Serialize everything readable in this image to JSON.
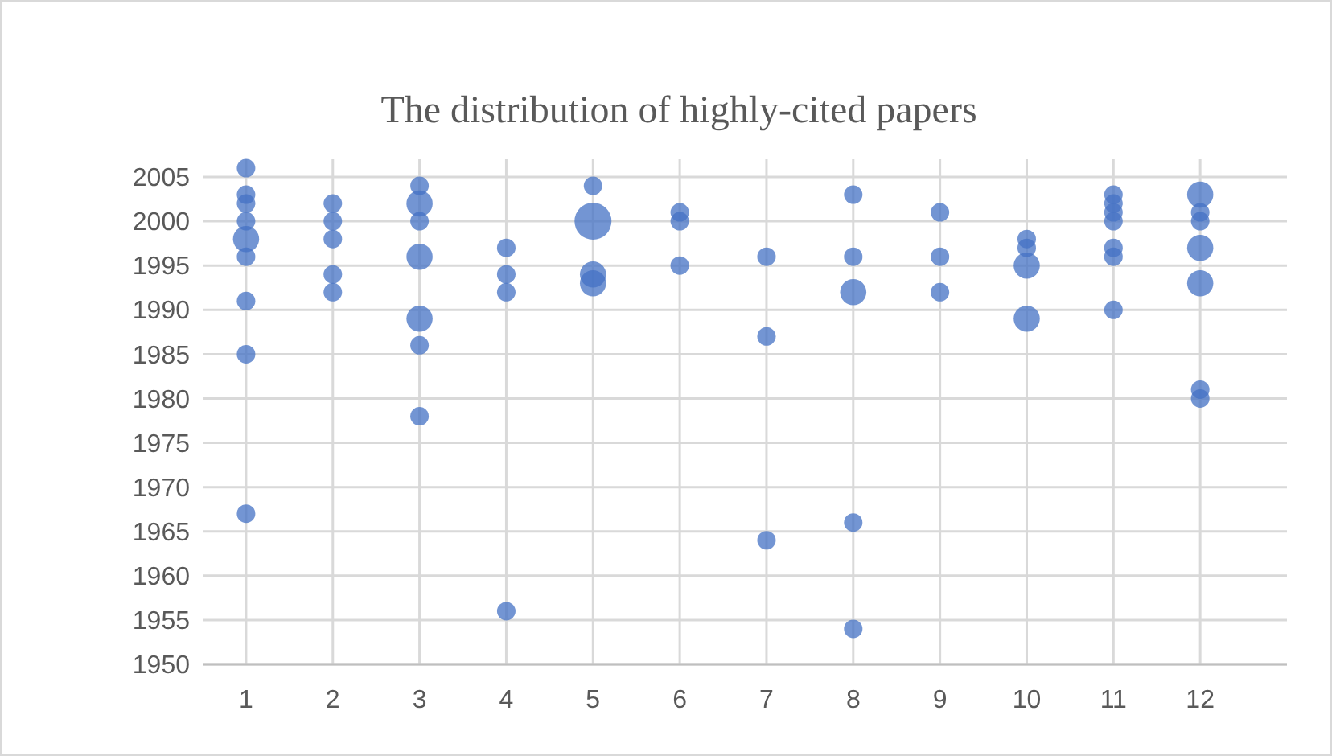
{
  "chart_data": {
    "type": "bubble",
    "title": "The distribution of highly-cited papers",
    "x": [
      1,
      1,
      1,
      1,
      1,
      1,
      1,
      1,
      1,
      2,
      2,
      2,
      2,
      2,
      3,
      3,
      3,
      3,
      3,
      3,
      3,
      4,
      4,
      4,
      4,
      5,
      5,
      5,
      5,
      6,
      6,
      6,
      7,
      7,
      7,
      8,
      8,
      8,
      8,
      8,
      9,
      9,
      9,
      10,
      10,
      10,
      10,
      11,
      11,
      11,
      11,
      11,
      11,
      11,
      12,
      12,
      12,
      12,
      12,
      12,
      12
    ],
    "values": [
      2006,
      2003,
      2002,
      2000,
      1998,
      1996,
      1991,
      1985,
      1967,
      2002,
      2000,
      1998,
      1994,
      1992,
      2004,
      2002,
      2000,
      1996,
      1989,
      1986,
      1978,
      1997,
      1994,
      1992,
      1956,
      2004,
      2000,
      1994,
      1993,
      2001,
      2000,
      1995,
      1996,
      1987,
      1964,
      2003,
      1996,
      1992,
      1966,
      1954,
      2001,
      1996,
      1992,
      1998,
      1997,
      1995,
      1989,
      2003,
      2002,
      2001,
      2000,
      1997,
      1996,
      1990,
      2003,
      2001,
      2000,
      1997,
      1993,
      1981,
      1980
    ],
    "sizes": [
      0.25,
      0.25,
      0.25,
      0.25,
      0.5,
      0.25,
      0.25,
      0.25,
      0.25,
      0.25,
      0.25,
      0.25,
      0.25,
      0.25,
      0.25,
      0.5,
      0.25,
      0.5,
      0.5,
      0.25,
      0.25,
      0.25,
      0.25,
      0.25,
      0.25,
      0.25,
      1,
      0.5,
      0.5,
      0.25,
      0.25,
      0.25,
      0.25,
      0.25,
      0.25,
      0.25,
      0.25,
      0.5,
      0.25,
      0.25,
      0.25,
      0.25,
      0.25,
      0.25,
      0.25,
      0.5,
      0.5,
      0.25,
      0.25,
      0.25,
      0.25,
      0.25,
      0.25,
      0.25,
      0.5,
      0.25,
      0.25,
      0.5,
      0.5,
      0.25,
      0.25
    ],
    "color": "#4472c4",
    "xlim": [
      0.5,
      13
    ],
    "xticks": [
      1,
      2,
      3,
      4,
      5,
      6,
      7,
      8,
      9,
      10,
      11,
      12
    ],
    "ylim": [
      1950,
      2007
    ],
    "yticks": [
      1950,
      1955,
      1960,
      1965,
      1970,
      1975,
      1980,
      1985,
      1990,
      1995,
      2000,
      2005
    ],
    "grid": true
  }
}
